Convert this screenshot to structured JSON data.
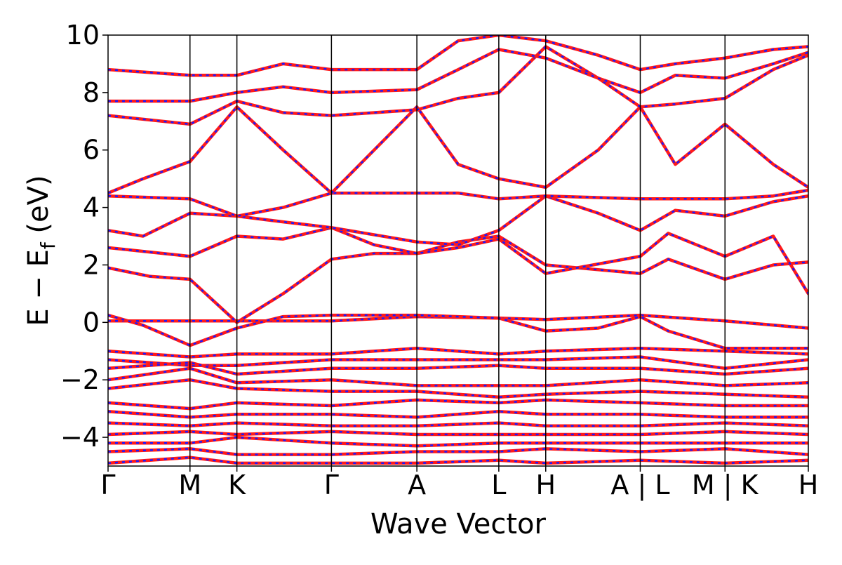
{
  "chart_data": {
    "type": "line",
    "xlabel": "Wave Vector",
    "ylabel_main": "E − E",
    "ylabel_sub": "f",
    "ylabel_unit": " (eV)",
    "ylim": [
      -5,
      10
    ],
    "yticks": [
      {
        "value": -4,
        "label": "−4"
      },
      {
        "value": -2,
        "label": "−2"
      },
      {
        "value": 0,
        "label": "0"
      },
      {
        "value": 2,
        "label": "2"
      },
      {
        "value": 4,
        "label": "4"
      },
      {
        "value": 6,
        "label": "6"
      },
      {
        "value": 8,
        "label": "8"
      },
      {
        "value": 10,
        "label": "10"
      }
    ],
    "xlim": [
      0,
      1
    ],
    "kpath": [
      {
        "x": 0.0,
        "label": "Γ",
        "line": true
      },
      {
        "x": 0.117,
        "label": "M",
        "line": true
      },
      {
        "x": 0.184,
        "label": "K",
        "line": true
      },
      {
        "x": 0.319,
        "label": "Γ",
        "line": true
      },
      {
        "x": 0.441,
        "label": "A",
        "line": true
      },
      {
        "x": 0.558,
        "label": "L",
        "line": true
      },
      {
        "x": 0.625,
        "label": "H",
        "line": true
      },
      {
        "x": 0.76,
        "label": "A | L",
        "line": true
      },
      {
        "x": 0.855,
        "label": "",
        "line": false
      },
      {
        "x": 0.881,
        "label": "M | K",
        "line": true
      },
      {
        "x": 1.0,
        "label": "H",
        "line": true
      }
    ],
    "series_colors": {
      "primary": "#ff1a1a",
      "overlay": "#1a1aff"
    },
    "series": [
      {
        "points": [
          [
            0,
            0.05
          ],
          [
            0.117,
            0.05
          ],
          [
            0.184,
            0.05
          ],
          [
            0.319,
            0.05
          ],
          [
            0.441,
            0.2
          ],
          [
            0.558,
            0.15
          ],
          [
            0.625,
            0.1
          ],
          [
            0.76,
            0.25
          ],
          [
            0.881,
            0.05
          ],
          [
            1,
            -0.2
          ]
        ]
      },
      {
        "points": [
          [
            0,
            0.25
          ],
          [
            0.05,
            -0.1
          ],
          [
            0.117,
            -0.8
          ],
          [
            0.184,
            -0.2
          ],
          [
            0.25,
            0.2
          ],
          [
            0.319,
            0.25
          ],
          [
            0.441,
            0.25
          ],
          [
            0.5,
            0.2
          ],
          [
            0.558,
            0.15
          ],
          [
            0.625,
            -0.3
          ],
          [
            0.7,
            -0.2
          ],
          [
            0.76,
            0.2
          ],
          [
            0.8,
            -0.3
          ],
          [
            0.881,
            -0.9
          ],
          [
            1,
            -0.9
          ]
        ]
      },
      {
        "points": [
          [
            0,
            -1.0
          ],
          [
            0.117,
            -1.2
          ],
          [
            0.184,
            -1.1
          ],
          [
            0.319,
            -1.1
          ],
          [
            0.441,
            -0.9
          ],
          [
            0.558,
            -1.1
          ],
          [
            0.625,
            -1.0
          ],
          [
            0.76,
            -0.9
          ],
          [
            0.881,
            -1.0
          ],
          [
            1,
            -1.1
          ]
        ]
      },
      {
        "points": [
          [
            0,
            -1.3
          ],
          [
            0.117,
            -1.5
          ],
          [
            0.184,
            -1.5
          ],
          [
            0.319,
            -1.3
          ],
          [
            0.441,
            -1.3
          ],
          [
            0.558,
            -1.3
          ],
          [
            0.625,
            -1.3
          ],
          [
            0.76,
            -1.2
          ],
          [
            0.881,
            -1.6
          ],
          [
            1,
            -1.3
          ]
        ]
      },
      {
        "points": [
          [
            0,
            -1.6
          ],
          [
            0.117,
            -1.4
          ],
          [
            0.184,
            -1.8
          ],
          [
            0.319,
            -1.6
          ],
          [
            0.441,
            -1.6
          ],
          [
            0.558,
            -1.5
          ],
          [
            0.625,
            -1.6
          ],
          [
            0.76,
            -1.6
          ],
          [
            0.881,
            -1.8
          ],
          [
            1,
            -1.6
          ]
        ]
      },
      {
        "points": [
          [
            0,
            -2.0
          ],
          [
            0.117,
            -1.6
          ],
          [
            0.184,
            -2.1
          ],
          [
            0.319,
            -2.0
          ],
          [
            0.441,
            -2.2
          ],
          [
            0.558,
            -2.2
          ],
          [
            0.625,
            -2.2
          ],
          [
            0.76,
            -2.0
          ],
          [
            0.881,
            -2.2
          ],
          [
            1,
            -2.1
          ]
        ]
      },
      {
        "points": [
          [
            0,
            -2.3
          ],
          [
            0.117,
            -2.0
          ],
          [
            0.184,
            -2.3
          ],
          [
            0.319,
            -2.4
          ],
          [
            0.441,
            -2.4
          ],
          [
            0.558,
            -2.6
          ],
          [
            0.625,
            -2.5
          ],
          [
            0.76,
            -2.4
          ],
          [
            0.881,
            -2.5
          ],
          [
            1,
            -2.6
          ]
        ]
      },
      {
        "points": [
          [
            0,
            -2.8
          ],
          [
            0.117,
            -3.0
          ],
          [
            0.184,
            -2.8
          ],
          [
            0.319,
            -2.9
          ],
          [
            0.441,
            -2.7
          ],
          [
            0.558,
            -2.8
          ],
          [
            0.625,
            -2.7
          ],
          [
            0.76,
            -2.8
          ],
          [
            0.881,
            -2.9
          ],
          [
            1,
            -2.9
          ]
        ]
      },
      {
        "points": [
          [
            0,
            -3.1
          ],
          [
            0.117,
            -3.3
          ],
          [
            0.184,
            -3.2
          ],
          [
            0.319,
            -3.2
          ],
          [
            0.441,
            -3.3
          ],
          [
            0.558,
            -3.1
          ],
          [
            0.625,
            -3.2
          ],
          [
            0.76,
            -3.2
          ],
          [
            0.881,
            -3.3
          ],
          [
            1,
            -3.3
          ]
        ]
      },
      {
        "points": [
          [
            0,
            -3.5
          ],
          [
            0.117,
            -3.6
          ],
          [
            0.184,
            -3.5
          ],
          [
            0.319,
            -3.6
          ],
          [
            0.441,
            -3.6
          ],
          [
            0.558,
            -3.5
          ],
          [
            0.625,
            -3.6
          ],
          [
            0.76,
            -3.6
          ],
          [
            0.881,
            -3.5
          ],
          [
            1,
            -3.6
          ]
        ]
      },
      {
        "points": [
          [
            0,
            -3.9
          ],
          [
            0.117,
            -3.8
          ],
          [
            0.184,
            -3.9
          ],
          [
            0.319,
            -3.8
          ],
          [
            0.441,
            -3.9
          ],
          [
            0.558,
            -3.9
          ],
          [
            0.625,
            -3.9
          ],
          [
            0.76,
            -3.9
          ],
          [
            0.881,
            -3.8
          ],
          [
            1,
            -3.9
          ]
        ]
      },
      {
        "points": [
          [
            0,
            -4.2
          ],
          [
            0.117,
            -4.2
          ],
          [
            0.184,
            -4.0
          ],
          [
            0.319,
            -4.2
          ],
          [
            0.441,
            -4.3
          ],
          [
            0.558,
            -4.2
          ],
          [
            0.625,
            -4.2
          ],
          [
            0.76,
            -4.2
          ],
          [
            0.881,
            -4.2
          ],
          [
            1,
            -4.2
          ]
        ]
      },
      {
        "points": [
          [
            0,
            -4.5
          ],
          [
            0.117,
            -4.4
          ],
          [
            0.184,
            -4.6
          ],
          [
            0.319,
            -4.6
          ],
          [
            0.441,
            -4.5
          ],
          [
            0.558,
            -4.5
          ],
          [
            0.625,
            -4.4
          ],
          [
            0.76,
            -4.5
          ],
          [
            0.881,
            -4.4
          ],
          [
            1,
            -4.6
          ]
        ]
      },
      {
        "points": [
          [
            0,
            -4.9
          ],
          [
            0.117,
            -4.7
          ],
          [
            0.184,
            -4.9
          ],
          [
            0.319,
            -4.9
          ],
          [
            0.441,
            -4.9
          ],
          [
            0.558,
            -4.8
          ],
          [
            0.625,
            -4.9
          ],
          [
            0.76,
            -4.8
          ],
          [
            0.881,
            -4.9
          ],
          [
            1,
            -4.8
          ]
        ]
      },
      {
        "points": [
          [
            0,
            1.9
          ],
          [
            0.06,
            1.6
          ],
          [
            0.117,
            1.5
          ],
          [
            0.184,
            0.0
          ],
          [
            0.25,
            1.0
          ],
          [
            0.319,
            2.2
          ],
          [
            0.38,
            2.4
          ],
          [
            0.441,
            2.4
          ],
          [
            0.5,
            2.8
          ],
          [
            0.558,
            3.0
          ],
          [
            0.625,
            2.0
          ],
          [
            0.76,
            1.7
          ],
          [
            0.8,
            2.2
          ],
          [
            0.881,
            1.5
          ],
          [
            0.95,
            2.0
          ],
          [
            1,
            2.1
          ]
        ]
      },
      {
        "points": [
          [
            0,
            2.6
          ],
          [
            0.117,
            2.3
          ],
          [
            0.184,
            3.0
          ],
          [
            0.25,
            2.9
          ],
          [
            0.319,
            3.3
          ],
          [
            0.38,
            2.7
          ],
          [
            0.441,
            2.4
          ],
          [
            0.5,
            2.6
          ],
          [
            0.558,
            2.9
          ],
          [
            0.625,
            1.7
          ],
          [
            0.76,
            2.3
          ],
          [
            0.8,
            3.1
          ],
          [
            0.881,
            2.3
          ],
          [
            0.95,
            3.0
          ],
          [
            1,
            1.0
          ]
        ]
      },
      {
        "points": [
          [
            0,
            3.2
          ],
          [
            0.05,
            3.0
          ],
          [
            0.117,
            3.8
          ],
          [
            0.184,
            3.7
          ],
          [
            0.25,
            3.5
          ],
          [
            0.319,
            3.3
          ],
          [
            0.441,
            2.8
          ],
          [
            0.5,
            2.7
          ],
          [
            0.558,
            3.2
          ],
          [
            0.625,
            4.4
          ],
          [
            0.7,
            3.8
          ],
          [
            0.76,
            3.2
          ],
          [
            0.81,
            3.9
          ],
          [
            0.881,
            3.7
          ],
          [
            0.95,
            4.2
          ],
          [
            1,
            4.4
          ]
        ]
      },
      {
        "points": [
          [
            0,
            4.4
          ],
          [
            0.117,
            4.3
          ],
          [
            0.184,
            3.7
          ],
          [
            0.25,
            4.0
          ],
          [
            0.319,
            4.5
          ],
          [
            0.441,
            4.5
          ],
          [
            0.5,
            4.5
          ],
          [
            0.558,
            4.3
          ],
          [
            0.625,
            4.4
          ],
          [
            0.76,
            4.3
          ],
          [
            0.881,
            4.3
          ],
          [
            0.95,
            4.4
          ],
          [
            1,
            4.6
          ]
        ]
      },
      {
        "points": [
          [
            0,
            4.5
          ],
          [
            0.05,
            5.0
          ],
          [
            0.117,
            5.6
          ],
          [
            0.184,
            7.5
          ],
          [
            0.25,
            6.0
          ],
          [
            0.319,
            4.5
          ],
          [
            0.441,
            7.5
          ],
          [
            0.5,
            5.5
          ],
          [
            0.558,
            5.0
          ],
          [
            0.625,
            4.7
          ],
          [
            0.7,
            6.0
          ],
          [
            0.76,
            7.5
          ],
          [
            0.81,
            5.5
          ],
          [
            0.881,
            6.9
          ],
          [
            0.95,
            5.5
          ],
          [
            1,
            4.7
          ]
        ]
      },
      {
        "points": [
          [
            0,
            7.2
          ],
          [
            0.117,
            6.9
          ],
          [
            0.184,
            7.7
          ],
          [
            0.25,
            7.3
          ],
          [
            0.319,
            7.2
          ],
          [
            0.441,
            7.4
          ],
          [
            0.5,
            7.8
          ],
          [
            0.558,
            8.0
          ],
          [
            0.625,
            9.6
          ],
          [
            0.7,
            8.5
          ],
          [
            0.76,
            7.5
          ],
          [
            0.81,
            7.6
          ],
          [
            0.881,
            7.8
          ],
          [
            0.95,
            8.8
          ],
          [
            1,
            9.3
          ]
        ]
      },
      {
        "points": [
          [
            0,
            7.7
          ],
          [
            0.117,
            7.7
          ],
          [
            0.184,
            8.0
          ],
          [
            0.25,
            8.2
          ],
          [
            0.319,
            8.0
          ],
          [
            0.441,
            8.1
          ],
          [
            0.5,
            8.8
          ],
          [
            0.558,
            9.5
          ],
          [
            0.625,
            9.2
          ],
          [
            0.7,
            8.5
          ],
          [
            0.76,
            8.0
          ],
          [
            0.81,
            8.6
          ],
          [
            0.881,
            8.5
          ],
          [
            0.95,
            9.0
          ],
          [
            1,
            9.4
          ]
        ]
      },
      {
        "points": [
          [
            0,
            8.8
          ],
          [
            0.117,
            8.6
          ],
          [
            0.184,
            8.6
          ],
          [
            0.25,
            9.0
          ],
          [
            0.319,
            8.8
          ],
          [
            0.441,
            8.8
          ],
          [
            0.5,
            9.8
          ],
          [
            0.558,
            10.0
          ],
          [
            0.625,
            9.8
          ],
          [
            0.7,
            9.3
          ],
          [
            0.76,
            8.8
          ],
          [
            0.81,
            9.0
          ],
          [
            0.881,
            9.2
          ],
          [
            0.95,
            9.5
          ],
          [
            1,
            9.6
          ]
        ]
      }
    ]
  }
}
